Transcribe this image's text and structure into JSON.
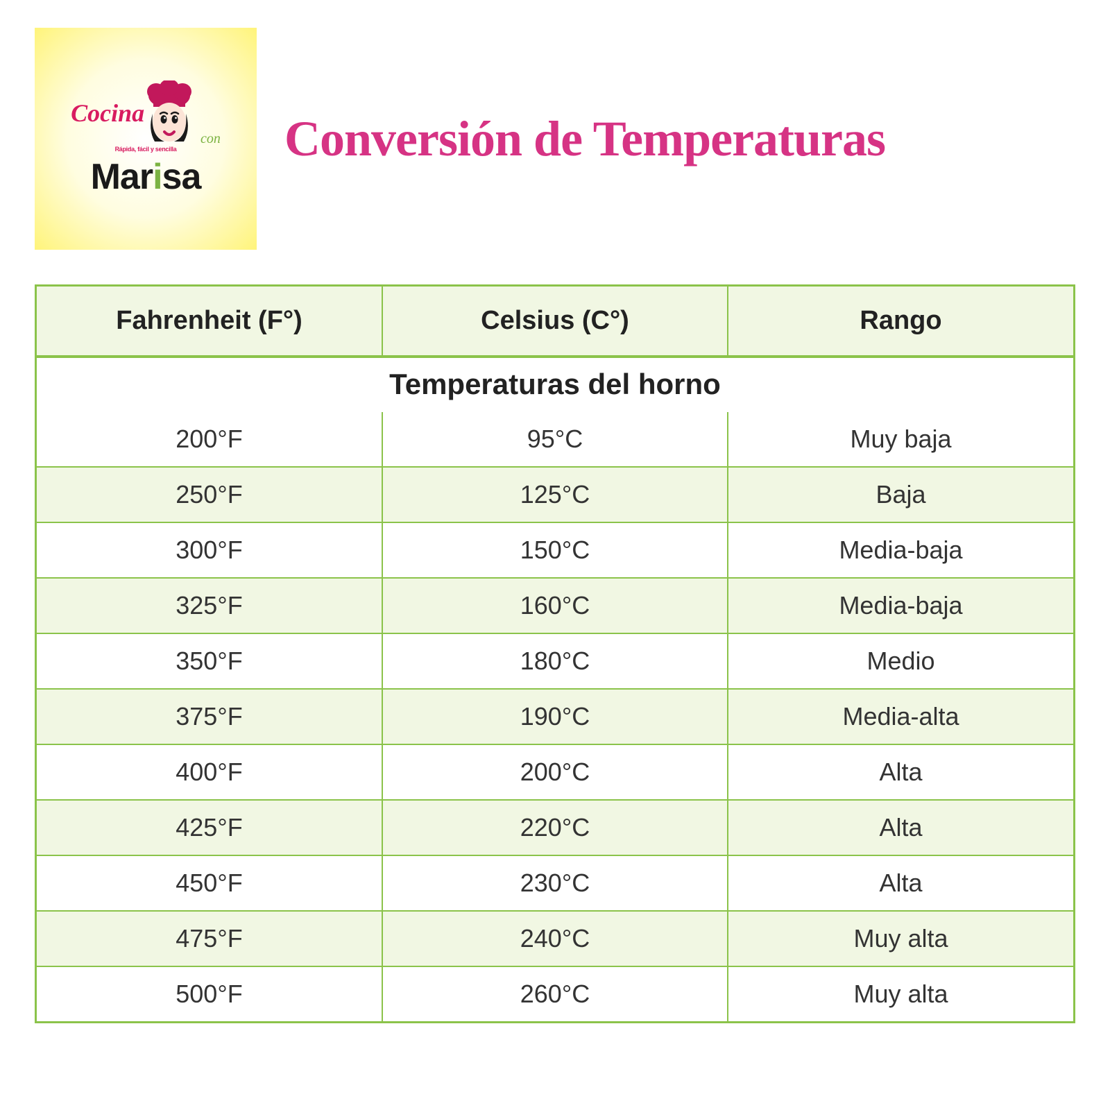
{
  "logo": {
    "word_cocina": "Cocina",
    "subline": "Rápida, fácil y sencilla",
    "word_con": "con",
    "word_marisa_pre": "Mar",
    "word_marisa_i": "i",
    "word_marisa_post": "sa",
    "colors": {
      "pink": "#d81b60",
      "green": "#7cb342",
      "black": "#1a1a1a",
      "hat": "#c2185b",
      "face": "#fce4d6"
    }
  },
  "title": "Conversión de Temperaturas",
  "table": {
    "caption": "Temperaturas del horno",
    "columns": [
      "Fahrenheit (F°)",
      "Celsius (C°)",
      "Rango"
    ],
    "rows": [
      [
        "200°F",
        "95°C",
        "Muy baja"
      ],
      [
        "250°F",
        "125°C",
        "Baja"
      ],
      [
        "300°F",
        "150°C",
        "Media-baja"
      ],
      [
        "325°F",
        "160°C",
        "Media-baja"
      ],
      [
        "350°F",
        "180°C",
        "Medio"
      ],
      [
        "375°F",
        "190°C",
        "Media-alta"
      ],
      [
        "400°F",
        "200°C",
        "Alta"
      ],
      [
        "425°F",
        "220°C",
        "Alta"
      ],
      [
        "450°F",
        "230°C",
        "Alta"
      ],
      [
        "475°F",
        "240°C",
        "Muy alta"
      ],
      [
        "500°F",
        "260°C",
        "Muy alta"
      ]
    ],
    "style": {
      "border_color": "#8bc34a",
      "row_odd_bg": "#ffffff",
      "row_even_bg": "#f1f7e3",
      "header_bg": "#f1f7e3",
      "caption_fontsize": 42,
      "header_fontsize": 38,
      "cell_fontsize": 36,
      "text_color": "#333333"
    }
  },
  "page": {
    "title_color": "#d63384",
    "title_fontsize": 72,
    "background": "#ffffff"
  }
}
